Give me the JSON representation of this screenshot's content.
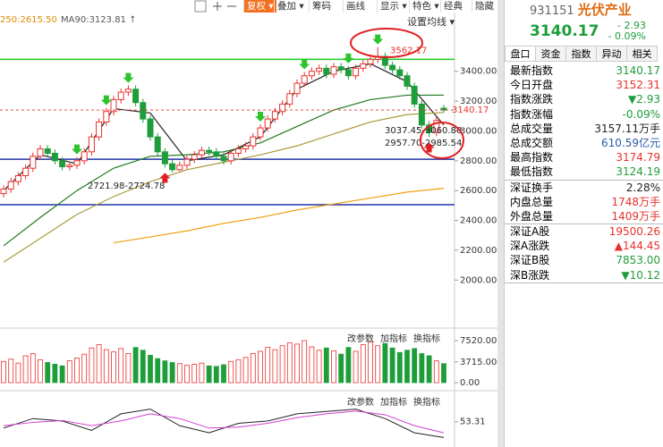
{
  "toolbar": {
    "buttons": [
      "复权 ▾",
      "叠加 ▾",
      "筹码",
      "画线",
      "显示 ▾",
      "特色 ▾",
      "经典",
      "隐藏"
    ],
    "ma_setting": "设置均线 ▾",
    "panel_buttons": [
      "改参数",
      "加指标",
      "换指标"
    ]
  },
  "chart_data": [
    {
      "type": "candlestick",
      "legend_texts": [
        "250:2615.50",
        "MA90:3123.81 ↑"
      ],
      "ylim": [
        1720,
        3770
      ],
      "yticks": [
        {
          "value": 2000,
          "label": "2000.00"
        },
        {
          "value": 2200,
          "label": "2200.00"
        },
        {
          "value": 2400,
          "label": "2400.00"
        },
        {
          "value": 2600,
          "label": "2600.00"
        },
        {
          "value": 2800,
          "label": "2800.00"
        },
        {
          "value": 3000,
          "label": "3000.00"
        },
        {
          "value": 3200,
          "label": "3200.00"
        },
        {
          "value": 3400,
          "label": "3400.00"
        }
      ],
      "open": [
        2580,
        2610,
        2660,
        2700,
        2750,
        2830,
        2880,
        2850,
        2800,
        2760,
        2770,
        2800,
        2860,
        2960,
        3060,
        3130,
        3210,
        3260,
        3280,
        3190,
        3080,
        2960,
        2860,
        2780,
        2740,
        2770,
        2810,
        2840,
        2870,
        2860,
        2830,
        2800,
        2850,
        2880,
        2900,
        2960,
        3020,
        3080,
        3130,
        3180,
        3250,
        3320,
        3370,
        3400,
        3420,
        3380,
        3430,
        3410,
        3370,
        3420,
        3450,
        3480,
        3500,
        3440,
        3410,
        3370,
        3300,
        3180,
        3040,
        2990,
        3152.31
      ],
      "high": [
        2635,
        2685,
        2725,
        2775,
        2855,
        2905,
        2905,
        2875,
        2825,
        2795,
        2825,
        2885,
        2985,
        3085,
        3155,
        3235,
        3285,
        3305,
        3305,
        3215,
        3105,
        2985,
        2885,
        2805,
        2795,
        2835,
        2865,
        2895,
        2895,
        2885,
        2855,
        2875,
        2905,
        2925,
        2985,
        3045,
        3105,
        3155,
        3205,
        3275,
        3345,
        3395,
        3425,
        3445,
        3445,
        3455,
        3455,
        3435,
        3445,
        3475,
        3505,
        3562.17,
        3525,
        3465,
        3435,
        3395,
        3325,
        3205,
        3065,
        3095,
        3174.79
      ],
      "low": [
        2555,
        2585,
        2635,
        2675,
        2725,
        2805,
        2825,
        2775,
        2735,
        2735,
        2745,
        2775,
        2835,
        2935,
        3035,
        3105,
        3185,
        3235,
        3165,
        3055,
        2935,
        2835,
        2755,
        2721.98,
        2730,
        2745,
        2785,
        2815,
        2835,
        2805,
        2775,
        2775,
        2825,
        2855,
        2875,
        2935,
        2995,
        3055,
        3105,
        3155,
        3225,
        3295,
        3345,
        3375,
        3355,
        3355,
        3385,
        3345,
        3345,
        3395,
        3425,
        3455,
        3415,
        3385,
        3345,
        3275,
        3155,
        3015,
        2957.7,
        2965,
        3124.19
      ],
      "close": [
        2610,
        2660,
        2700,
        2750,
        2830,
        2880,
        2850,
        2800,
        2760,
        2770,
        2800,
        2860,
        2960,
        3060,
        3130,
        3210,
        3260,
        3280,
        3190,
        3080,
        2960,
        2860,
        2780,
        2740,
        2770,
        2810,
        2840,
        2870,
        2860,
        2830,
        2800,
        2850,
        2880,
        2900,
        2960,
        3020,
        3080,
        3130,
        3180,
        3250,
        3320,
        3370,
        3400,
        3420,
        3380,
        3430,
        3410,
        3370,
        3420,
        3450,
        3480,
        3500,
        3440,
        3410,
        3370,
        3300,
        3180,
        3040,
        2990,
        3070,
        3140.17
      ],
      "up_color": "#e8312d",
      "down_color": "#1e9e3a",
      "lines": [
        {
          "color": "#222222",
          "x": [
            0,
            5,
            10,
            15,
            20,
            25,
            30,
            35,
            40,
            45,
            50,
            55,
            60
          ],
          "values": [
            2600,
            2840,
            2780,
            3150,
            3120,
            2800,
            2840,
            2960,
            3280,
            3400,
            3450,
            3330,
            3040
          ]
        },
        {
          "color": "#1e7a1e",
          "x": [
            0,
            5,
            10,
            15,
            20,
            25,
            30,
            35,
            40,
            45,
            50,
            55,
            60
          ],
          "values": [
            2230,
            2420,
            2600,
            2750,
            2830,
            2840,
            2860,
            2920,
            3030,
            3140,
            3210,
            3240,
            3240
          ]
        },
        {
          "color": "#a89a3a",
          "x": [
            0,
            5,
            10,
            15,
            20,
            25,
            30,
            35,
            40,
            45,
            50,
            55,
            60
          ],
          "values": [
            2120,
            2280,
            2440,
            2560,
            2660,
            2740,
            2790,
            2840,
            2900,
            2980,
            3060,
            3110,
            3123.81
          ]
        },
        {
          "color": "#f0a010",
          "x": [
            15,
            20,
            25,
            30,
            35,
            40,
            45,
            50,
            55,
            60
          ],
          "values": [
            2250,
            2290,
            2330,
            2380,
            2420,
            2470,
            2510,
            2550,
            2590,
            2615.5
          ]
        }
      ],
      "hlines": [
        {
          "value": 3480,
          "color": "#22cc22"
        },
        {
          "value": 2810,
          "color": "#2233aa"
        },
        {
          "value": 2505,
          "color": "#2233aa"
        }
      ],
      "annotations": [
        "3562.17",
        "3140.17",
        "3037.45-3060.80",
        "2957.70-2985.54",
        "2721.98-2724.78"
      ]
    },
    {
      "type": "bar",
      "ylim": [
        0,
        8000
      ],
      "yticks": [
        {
          "value": 0,
          "label": "0.00"
        },
        {
          "value": 3715,
          "label": "3715.00"
        },
        {
          "value": 7520,
          "label": "7520.00"
        }
      ],
      "values": [
        3800,
        4200,
        3500,
        4800,
        5200,
        4100,
        3600,
        3300,
        3000,
        3900,
        4400,
        5100,
        6200,
        6800,
        5900,
        5500,
        6100,
        5200,
        6300,
        5800,
        4900,
        4300,
        3900,
        3600,
        3400,
        3100,
        3300,
        3500,
        3000,
        2900,
        3200,
        3800,
        4100,
        4500,
        5200,
        5600,
        6300,
        5900,
        6600,
        7100,
        6900,
        7520,
        6400,
        5800,
        6200,
        5700,
        5100,
        6300,
        5600,
        6800,
        7300,
        6600,
        7000,
        6200,
        5400,
        5800,
        6100,
        5200,
        4800,
        3900,
        3400
      ]
    },
    {
      "type": "line",
      "ylim": [
        0,
        100
      ],
      "yticks": [
        {
          "value": 53.31,
          "label": "53.31"
        }
      ],
      "series": [
        {
          "color": "#222222",
          "x": [
            0,
            4,
            8,
            12,
            16,
            20,
            24,
            28,
            32,
            36,
            40,
            44,
            48,
            52,
            56,
            60
          ],
          "values": [
            40,
            60,
            55,
            35,
            70,
            80,
            45,
            30,
            50,
            55,
            70,
            75,
            80,
            60,
            30,
            20
          ]
        },
        {
          "color": "#d040d0",
          "x": [
            0,
            4,
            8,
            12,
            16,
            20,
            24,
            28,
            32,
            36,
            40,
            44,
            48,
            52,
            56,
            60
          ],
          "values": [
            45,
            52,
            56,
            45,
            55,
            70,
            60,
            40,
            42,
            50,
            62,
            70,
            76,
            68,
            45,
            30
          ]
        }
      ]
    }
  ],
  "quote": {
    "code": "931151",
    "name": "光伏产业",
    "price": "3140.17",
    "change": "- 2.93",
    "pct": "- 0.09%",
    "tabs": [
      "盘口",
      "资金",
      "指数",
      "异动",
      "相关"
    ],
    "groups": [
      [
        {
          "label": "最新指数",
          "value": "3140.17",
          "color": "#1e9e3a"
        },
        {
          "label": "今日开盘",
          "value": "3152.31",
          "color": "#e8312d"
        },
        {
          "label": "指数涨跌",
          "value": "▼2.93",
          "color": "#1e9e3a"
        },
        {
          "label": "指数涨幅",
          "value": "-0.09%",
          "color": "#1e9e3a"
        },
        {
          "label": "总成交量",
          "value": "3157.11万手",
          "color": "#222222"
        },
        {
          "label": "总成交额",
          "value": "610.59亿元",
          "color": "#2a5caa"
        },
        {
          "label": "最高指数",
          "value": "3174.79",
          "color": "#e8312d"
        },
        {
          "label": "最低指数",
          "value": "3124.19",
          "color": "#1e9e3a"
        }
      ],
      [
        {
          "label": "深证换手",
          "value": "2.28%",
          "color": "#222222"
        },
        {
          "label": "内盘总量",
          "value": "1748万手",
          "color": "#e8312d"
        },
        {
          "label": "外盘总量",
          "value": "1409万手",
          "color": "#e8312d"
        }
      ],
      [
        {
          "label": "深证A股",
          "value": "19500.26",
          "color": "#e8312d"
        },
        {
          "label": "深A涨跌",
          "value": "▲144.45",
          "color": "#e8312d"
        },
        {
          "label": "深证B股",
          "value": "7853.00",
          "color": "#1e9e3a"
        },
        {
          "label": "深B涨跌",
          "value": "▼10.12",
          "color": "#1e9e3a"
        }
      ]
    ]
  }
}
